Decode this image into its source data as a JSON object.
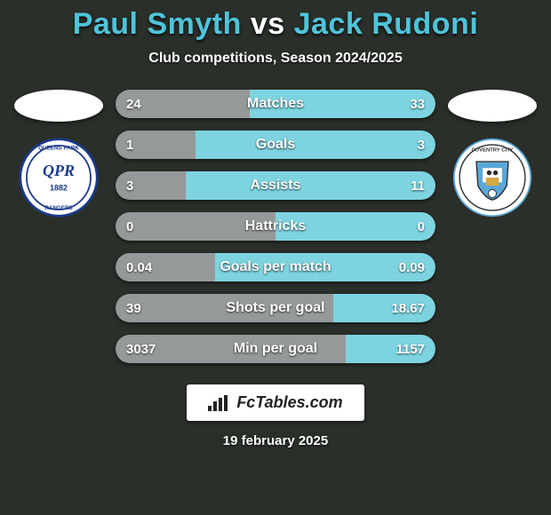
{
  "title": {
    "player1": "Paul Smyth",
    "vs": "vs",
    "player2": "Jack Rudoni",
    "fontsize": 34,
    "color_player": "#4fc3d9",
    "color_vs": "#ffffff"
  },
  "subtitle": "Club competitions, Season 2024/2025",
  "background_color": "#2a2f2a",
  "left_team": {
    "name": "Queens Park Rangers",
    "crest_bg": "#ffffff",
    "crest_text": "QPR",
    "crest_year": "1882",
    "crest_color": "#1a3a8a"
  },
  "right_team": {
    "name": "Coventry City",
    "crest_bg": "#ffffff",
    "crest_color": "#5aa8d8"
  },
  "bars": {
    "track_color": "#5a5f5a",
    "left_fill_color": "#96999a",
    "right_fill_color": "#7dd4e0",
    "height": 32,
    "radius": 16,
    "label_fontsize": 16,
    "value_fontsize": 15,
    "rows": [
      {
        "label": "Matches",
        "left_val": "24",
        "right_val": "33",
        "left_pct": 42,
        "right_pct": 58
      },
      {
        "label": "Goals",
        "left_val": "1",
        "right_val": "3",
        "left_pct": 25,
        "right_pct": 75
      },
      {
        "label": "Assists",
        "left_val": "3",
        "right_val": "11",
        "left_pct": 22,
        "right_pct": 78
      },
      {
        "label": "Hattricks",
        "left_val": "0",
        "right_val": "0",
        "left_pct": 50,
        "right_pct": 50
      },
      {
        "label": "Goals per match",
        "left_val": "0.04",
        "right_val": "0.09",
        "left_pct": 31,
        "right_pct": 69
      },
      {
        "label": "Shots per goal",
        "left_val": "39",
        "right_val": "18.67",
        "left_pct": 68,
        "right_pct": 32
      },
      {
        "label": "Min per goal",
        "left_val": "3037",
        "right_val": "1157",
        "left_pct": 72,
        "right_pct": 28
      }
    ]
  },
  "brand": {
    "icon_name": "bar-chart-icon",
    "text": "FcTables.com"
  },
  "date": "19 february 2025"
}
